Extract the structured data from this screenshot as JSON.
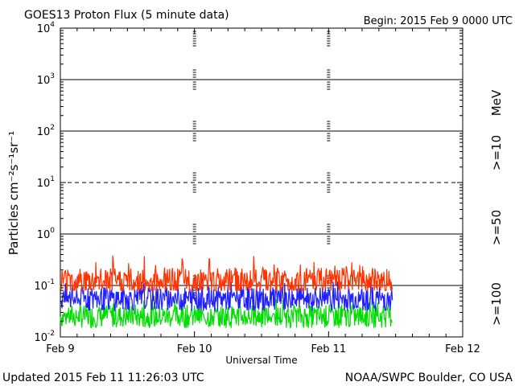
{
  "header": {
    "title": "GOES13 Proton Flux (5 minute data)",
    "begin": "Begin: 2015 Feb 9 0000 UTC"
  },
  "footer": {
    "updated": "Updated 2015 Feb 11 11:26:03 UTC",
    "credit": "NOAA/SWPC Boulder, CO USA"
  },
  "chart_data": {
    "type": "line",
    "title": "GOES13 Proton Flux (5 minute data)",
    "xlabel": "Universal Time",
    "ylabel": "Particles cm⁻²s⁻¹sr⁻¹",
    "y_scale": "log",
    "ylim": [
      0.01,
      10000
    ],
    "xlim": [
      "2015-02-09",
      "2015-02-12"
    ],
    "x_ticks": [
      "Feb 9",
      "Feb 10",
      "Feb 11",
      "Feb 12"
    ],
    "y_ticks": [
      {
        "base": "10",
        "exp": "-2",
        "value": 0.01
      },
      {
        "base": "10",
        "exp": "-1",
        "value": 0.1
      },
      {
        "base": "10",
        "exp": "0",
        "value": 1
      },
      {
        "base": "10",
        "exp": "1",
        "value": 10
      },
      {
        "base": "10",
        "exp": "2",
        "value": 100
      },
      {
        "base": "10",
        "exp": "3",
        "value": 1000
      },
      {
        "base": "10",
        "exp": "4",
        "value": 10000
      }
    ],
    "unit_label": "MeV",
    "data_end": "2015-02-11 11:25",
    "series": [
      {
        "name": ">=10",
        "color": "#ff3300",
        "typical": 0.12,
        "range": [
          0.08,
          0.4
        ]
      },
      {
        "name": ">=50",
        "color": "#2020ff",
        "typical": 0.055,
        "range": [
          0.03,
          0.13
        ]
      },
      {
        "name": ">=100",
        "color": "#00dd00",
        "typical": 0.025,
        "range": [
          0.015,
          0.06
        ]
      }
    ],
    "grid": "solid lines at 10^-1, 10^0, 10^2, 10^3; dashed at 10^1; dotted day separators"
  }
}
